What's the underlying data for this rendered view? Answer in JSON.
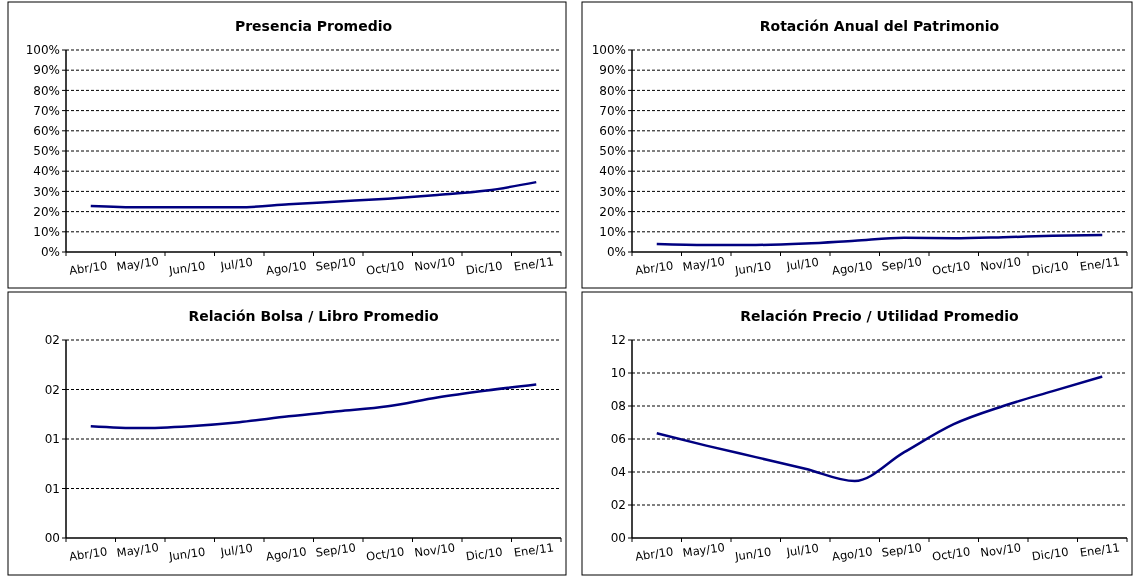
{
  "chart_data": [
    {
      "type": "line",
      "title": "Presencia Promedio",
      "categories": [
        "Abr/10",
        "May/10",
        "Jun/10",
        "Jul/10",
        "Ago/10",
        "Sep/10",
        "Oct/10",
        "Nov/10",
        "Dic/10",
        "Ene/11"
      ],
      "series": [
        {
          "color": "#000080",
          "values": [
            22.8,
            22.1,
            22.1,
            22.1,
            23.6,
            25.0,
            26.4,
            28.2,
            30.4,
            34.6
          ]
        }
      ],
      "ylim": [
        0,
        100
      ],
      "yticks": [
        {
          "value": 0,
          "label": "0%"
        },
        {
          "value": 10,
          "label": "10%"
        },
        {
          "value": 20,
          "label": "20%"
        },
        {
          "value": 30,
          "label": "30%"
        },
        {
          "value": 40,
          "label": "40%"
        },
        {
          "value": 50,
          "label": "50%"
        },
        {
          "value": 60,
          "label": "60%"
        },
        {
          "value": 70,
          "label": "70%"
        },
        {
          "value": 80,
          "label": "80%"
        },
        {
          "value": 90,
          "label": "90%"
        },
        {
          "value": 100,
          "label": "100%"
        }
      ],
      "grid": "y"
    },
    {
      "type": "line",
      "title": "Rotación Anual del Patrimonio",
      "categories": [
        "Abr/10",
        "May/10",
        "Jun/10",
        "Jul/10",
        "Ago/10",
        "Sep/10",
        "Oct/10",
        "Nov/10",
        "Dic/10",
        "Ene/11"
      ],
      "series": [
        {
          "color": "#000080",
          "values": [
            4.0,
            3.5,
            3.5,
            4.2,
            5.6,
            7.0,
            6.8,
            7.3,
            8.0,
            8.4
          ]
        }
      ],
      "ylim": [
        0,
        100
      ],
      "yticks": [
        {
          "value": 0,
          "label": "0%"
        },
        {
          "value": 10,
          "label": "10%"
        },
        {
          "value": 20,
          "label": "20%"
        },
        {
          "value": 30,
          "label": "30%"
        },
        {
          "value": 40,
          "label": "40%"
        },
        {
          "value": 50,
          "label": "50%"
        },
        {
          "value": 60,
          "label": "60%"
        },
        {
          "value": 70,
          "label": "70%"
        },
        {
          "value": 80,
          "label": "80%"
        },
        {
          "value": 90,
          "label": "90%"
        },
        {
          "value": 100,
          "label": "100%"
        }
      ],
      "grid": "y"
    },
    {
      "type": "line",
      "title": "Relación Bolsa / Libro Promedio",
      "categories": [
        "Abr/10",
        "May/10",
        "Jun/10",
        "Jul/10",
        "Ago/10",
        "Sep/10",
        "Oct/10",
        "Nov/10",
        "Dic/10",
        "Ene/11"
      ],
      "series": [
        {
          "color": "#000080",
          "values": [
            1.13,
            1.11,
            1.13,
            1.17,
            1.23,
            1.28,
            1.33,
            1.42,
            1.49,
            1.55
          ]
        }
      ],
      "ylim": [
        0,
        2
      ],
      "yticks": [
        {
          "value": 0,
          "label": "00"
        },
        {
          "value": 0.5,
          "label": "01"
        },
        {
          "value": 1,
          "label": "01"
        },
        {
          "value": 1.5,
          "label": "02"
        },
        {
          "value": 2,
          "label": "02"
        }
      ],
      "grid": "y"
    },
    {
      "type": "line",
      "title": "Relación Precio / Utilidad Promedio",
      "categories": [
        "Abr/10",
        "May/10",
        "Jun/10",
        "Jul/10",
        "Ago/10",
        "Sep/10",
        "Oct/10",
        "Nov/10",
        "Dic/10",
        "Ene/11"
      ],
      "series": [
        {
          "color": "#000080",
          "values": [
            6.35,
            5.6,
            4.9,
            4.2,
            3.45,
            5.2,
            6.9,
            8.0,
            8.9,
            9.78
          ]
        }
      ],
      "ylim": [
        0,
        12
      ],
      "yticks": [
        {
          "value": 0,
          "label": "00"
        },
        {
          "value": 2,
          "label": "02"
        },
        {
          "value": 4,
          "label": "04"
        },
        {
          "value": 6,
          "label": "06"
        },
        {
          "value": 8,
          "label": "08"
        },
        {
          "value": 10,
          "label": "10"
        },
        {
          "value": 12,
          "label": "12"
        }
      ],
      "grid": "y"
    }
  ]
}
